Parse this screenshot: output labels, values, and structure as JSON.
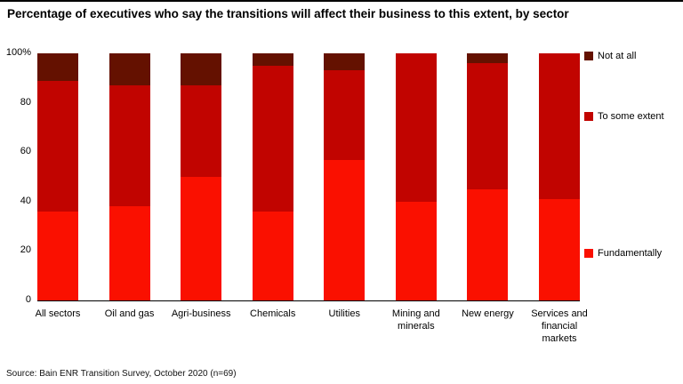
{
  "chart_data": {
    "type": "bar",
    "subtype": "stacked-vertical",
    "title": "Percentage of executives who say the transitions will affect their business to this extent, by sector",
    "categories": [
      "All sectors",
      "Oil and gas",
      "Agri-business",
      "Chemicals",
      "Utilities",
      "Mining and minerals",
      "New energy",
      "Services and financial markets"
    ],
    "series": [
      {
        "name": "Fundamentally",
        "color": "#fa1000",
        "values": [
          36,
          38,
          50,
          36,
          57,
          40,
          45,
          41
        ]
      },
      {
        "name": "To some extent",
        "color": "#c10400",
        "values": [
          53,
          49,
          37,
          59,
          36,
          60,
          51,
          59
        ]
      },
      {
        "name": "Not at all",
        "color": "#641100",
        "values": [
          11,
          13,
          13,
          5,
          7,
          0,
          4,
          0
        ]
      }
    ],
    "ylim": [
      0,
      100
    ],
    "yticks": [
      {
        "label": "100%",
        "value": 100
      },
      {
        "label": "80",
        "value": 80
      },
      {
        "label": "60",
        "value": 60
      },
      {
        "label": "40",
        "value": 40
      },
      {
        "label": "20",
        "value": 20
      },
      {
        "label": "0",
        "value": 0
      }
    ],
    "grid": "off",
    "legend_position": "right",
    "source": "Source: Bain ENR Transition Survey, October 2020 (n=69)"
  }
}
